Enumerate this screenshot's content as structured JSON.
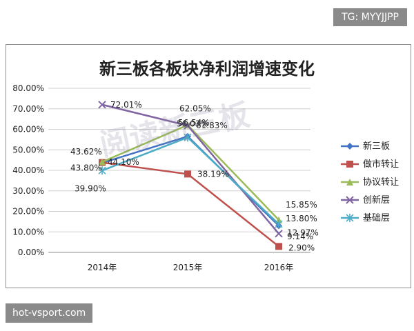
{
  "badges": {
    "tg": "TG: MYYJJPP",
    "source": "hot-vsport.com"
  },
  "watermark": "阅读新三板",
  "chart_data": {
    "type": "line",
    "title": "新三板各板块净利润增速变化",
    "xlabel": "",
    "ylabel": "",
    "categories": [
      "2014年",
      "2015年",
      "2016年"
    ],
    "y_ticks": [
      "0.00%",
      "10.00%",
      "20.00%",
      "30.00%",
      "40.00%",
      "50.00%",
      "60.00%",
      "70.00%",
      "80.00%"
    ],
    "ylim": [
      0,
      80
    ],
    "grid": true,
    "legend_position": "right",
    "series": [
      {
        "name": "新三板",
        "values": [
          43.62,
          56.54,
          12.97
        ],
        "labels": [
          "43.62%",
          "56.54%",
          "12.97%"
        ],
        "color": "#4472c4",
        "marker": "diamond"
      },
      {
        "name": "做市转让",
        "values": [
          43.8,
          38.19,
          2.9
        ],
        "labels": [
          "43.80%",
          "38.19%",
          "2.90%"
        ],
        "color": "#c0504d",
        "marker": "square"
      },
      {
        "name": "协议转让",
        "values": [
          44.1,
          62.05,
          15.85
        ],
        "labels": [
          "44.10%",
          "62.05%",
          "15.85%"
        ],
        "color": "#9bbb59",
        "marker": "triangle"
      },
      {
        "name": "创新层",
        "values": [
          72.01,
          61.83,
          9.14
        ],
        "labels": [
          "72.01%",
          "61.83%",
          "9.14%"
        ],
        "color": "#8064a2",
        "marker": "x"
      },
      {
        "name": "基础层",
        "values": [
          39.9,
          56.03,
          13.8
        ],
        "labels": [
          "39.90%",
          "56.03%",
          "13.80%"
        ],
        "color": "#4bacc6",
        "marker": "star"
      }
    ]
  }
}
